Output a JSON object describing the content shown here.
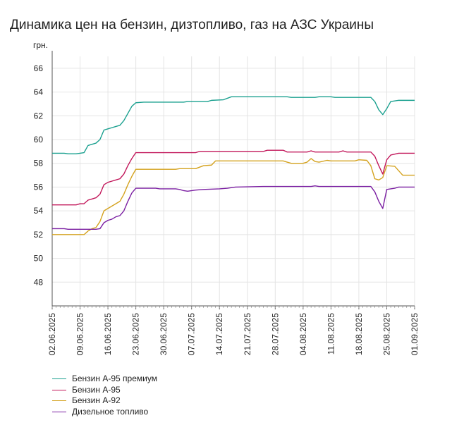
{
  "title": "Динамика цен на бензин, дизтопливо, газ на АЗС Украины",
  "chart_data": {
    "type": "line",
    "title": "Динамика цен на бензин, дизтопливо, газ на АЗС Украины",
    "ylabel": "грн.",
    "xlabel": "",
    "ylim": [
      46,
      67
    ],
    "yticks": [
      48,
      50,
      52,
      54,
      56,
      58,
      60,
      62,
      64,
      66
    ],
    "xlim": [
      "2025-06-02",
      "2025-09-01"
    ],
    "xticks": [
      "02.06.2025",
      "09.06.2025",
      "16.06.2025",
      "23.06.2025",
      "30.06.2025",
      "07.07.2025",
      "14.07.2025",
      "21.07.2025",
      "28.07.2025",
      "04.08.2025",
      "11.08.2025",
      "18.08.2025",
      "25.08.2025",
      "01.09.2025"
    ],
    "grid": true,
    "legend_position": "bottom-left",
    "series": [
      {
        "name": "Бензин А-95 премиум",
        "color": "#1aa08f",
        "points": [
          [
            "2025-06-02",
            58.85
          ],
          [
            "2025-06-05",
            58.85
          ],
          [
            "2025-06-06",
            58.8
          ],
          [
            "2025-06-08",
            58.8
          ],
          [
            "2025-06-09",
            58.85
          ],
          [
            "2025-06-10",
            58.9
          ],
          [
            "2025-06-11",
            59.5
          ],
          [
            "2025-06-13",
            59.7
          ],
          [
            "2025-06-14",
            60.0
          ],
          [
            "2025-06-15",
            60.8
          ],
          [
            "2025-06-16",
            60.9
          ],
          [
            "2025-06-17",
            61.0
          ],
          [
            "2025-06-18",
            61.1
          ],
          [
            "2025-06-19",
            61.2
          ],
          [
            "2025-06-20",
            61.6
          ],
          [
            "2025-06-21",
            62.2
          ],
          [
            "2025-06-22",
            62.8
          ],
          [
            "2025-06-23",
            63.1
          ],
          [
            "2025-06-25",
            63.15
          ],
          [
            "2025-07-05",
            63.15
          ],
          [
            "2025-07-06",
            63.2
          ],
          [
            "2025-07-11",
            63.2
          ],
          [
            "2025-07-12",
            63.3
          ],
          [
            "2025-07-15",
            63.35
          ],
          [
            "2025-07-17",
            63.6
          ],
          [
            "2025-07-31",
            63.6
          ],
          [
            "2025-08-01",
            63.55
          ],
          [
            "2025-08-07",
            63.55
          ],
          [
            "2025-08-08",
            63.6
          ],
          [
            "2025-08-11",
            63.6
          ],
          [
            "2025-08-12",
            63.55
          ],
          [
            "2025-08-21",
            63.55
          ],
          [
            "2025-08-22",
            63.2
          ],
          [
            "2025-08-23",
            62.5
          ],
          [
            "2025-08-24",
            62.1
          ],
          [
            "2025-08-25",
            62.6
          ],
          [
            "2025-08-26",
            63.2
          ],
          [
            "2025-08-28",
            63.3
          ],
          [
            "2025-09-01",
            63.3
          ]
        ]
      },
      {
        "name": "Бензин А-95",
        "color": "#c2185b",
        "points": [
          [
            "2025-06-02",
            54.5
          ],
          [
            "2025-06-08",
            54.5
          ],
          [
            "2025-06-09",
            54.6
          ],
          [
            "2025-06-10",
            54.6
          ],
          [
            "2025-06-11",
            54.9
          ],
          [
            "2025-06-12",
            55.0
          ],
          [
            "2025-06-13",
            55.1
          ],
          [
            "2025-06-14",
            55.4
          ],
          [
            "2025-06-15",
            56.2
          ],
          [
            "2025-06-16",
            56.4
          ],
          [
            "2025-06-17",
            56.5
          ],
          [
            "2025-06-18",
            56.6
          ],
          [
            "2025-06-19",
            56.7
          ],
          [
            "2025-06-20",
            57.1
          ],
          [
            "2025-06-21",
            57.8
          ],
          [
            "2025-06-22",
            58.4
          ],
          [
            "2025-06-23",
            58.9
          ],
          [
            "2025-07-08",
            58.9
          ],
          [
            "2025-07-09",
            59.0
          ],
          [
            "2025-07-25",
            59.0
          ],
          [
            "2025-07-26",
            59.1
          ],
          [
            "2025-07-30",
            59.1
          ],
          [
            "2025-07-31",
            58.95
          ],
          [
            "2025-08-05",
            58.95
          ],
          [
            "2025-08-06",
            59.05
          ],
          [
            "2025-08-07",
            58.95
          ],
          [
            "2025-08-13",
            58.95
          ],
          [
            "2025-08-14",
            59.05
          ],
          [
            "2025-08-15",
            58.95
          ],
          [
            "2025-08-21",
            58.95
          ],
          [
            "2025-08-22",
            58.6
          ],
          [
            "2025-08-23",
            57.8
          ],
          [
            "2025-08-24",
            57.1
          ],
          [
            "2025-08-25",
            58.3
          ],
          [
            "2025-08-26",
            58.7
          ],
          [
            "2025-08-28",
            58.85
          ],
          [
            "2025-09-01",
            58.85
          ]
        ]
      },
      {
        "name": "Бензин А-92",
        "color": "#d4a21e",
        "points": [
          [
            "2025-06-02",
            52.0
          ],
          [
            "2025-06-10",
            52.0
          ],
          [
            "2025-06-11",
            52.3
          ],
          [
            "2025-06-12",
            52.5
          ],
          [
            "2025-06-13",
            52.6
          ],
          [
            "2025-06-14",
            53.1
          ],
          [
            "2025-06-15",
            54.0
          ],
          [
            "2025-06-16",
            54.2
          ],
          [
            "2025-06-17",
            54.4
          ],
          [
            "2025-06-18",
            54.6
          ],
          [
            "2025-06-19",
            54.8
          ],
          [
            "2025-06-20",
            55.4
          ],
          [
            "2025-06-21",
            56.2
          ],
          [
            "2025-06-22",
            56.9
          ],
          [
            "2025-06-23",
            57.5
          ],
          [
            "2025-07-03",
            57.5
          ],
          [
            "2025-07-04",
            57.55
          ],
          [
            "2025-07-08",
            57.55
          ],
          [
            "2025-07-10",
            57.8
          ],
          [
            "2025-07-12",
            57.85
          ],
          [
            "2025-07-13",
            58.2
          ],
          [
            "2025-07-30",
            58.2
          ],
          [
            "2025-07-31",
            58.1
          ],
          [
            "2025-08-01",
            58.0
          ],
          [
            "2025-08-04",
            58.0
          ],
          [
            "2025-08-05",
            58.1
          ],
          [
            "2025-08-06",
            58.4
          ],
          [
            "2025-08-07",
            58.15
          ],
          [
            "2025-08-08",
            58.1
          ],
          [
            "2025-08-10",
            58.25
          ],
          [
            "2025-08-11",
            58.2
          ],
          [
            "2025-08-17",
            58.2
          ],
          [
            "2025-08-18",
            58.3
          ],
          [
            "2025-08-20",
            58.25
          ],
          [
            "2025-08-21",
            57.8
          ],
          [
            "2025-08-22",
            56.7
          ],
          [
            "2025-08-23",
            56.6
          ],
          [
            "2025-08-24",
            56.8
          ],
          [
            "2025-08-25",
            57.8
          ],
          [
            "2025-08-27",
            57.75
          ],
          [
            "2025-08-29",
            57.0
          ],
          [
            "2025-09-01",
            57.0
          ]
        ]
      },
      {
        "name": "Дизельное топливо",
        "color": "#7b1fa2",
        "points": [
          [
            "2025-06-02",
            52.5
          ],
          [
            "2025-06-05",
            52.5
          ],
          [
            "2025-06-06",
            52.45
          ],
          [
            "2025-06-13",
            52.45
          ],
          [
            "2025-06-14",
            52.5
          ],
          [
            "2025-06-15",
            53.0
          ],
          [
            "2025-06-16",
            53.2
          ],
          [
            "2025-06-17",
            53.3
          ],
          [
            "2025-06-18",
            53.5
          ],
          [
            "2025-06-19",
            53.6
          ],
          [
            "2025-06-20",
            54.0
          ],
          [
            "2025-06-21",
            54.8
          ],
          [
            "2025-06-22",
            55.5
          ],
          [
            "2025-06-23",
            55.9
          ],
          [
            "2025-06-28",
            55.9
          ],
          [
            "2025-06-29",
            55.85
          ],
          [
            "2025-07-03",
            55.85
          ],
          [
            "2025-07-04",
            55.8
          ],
          [
            "2025-07-05",
            55.7
          ],
          [
            "2025-07-06",
            55.65
          ],
          [
            "2025-07-08",
            55.75
          ],
          [
            "2025-07-10",
            55.8
          ],
          [
            "2025-07-14",
            55.85
          ],
          [
            "2025-07-16",
            55.9
          ],
          [
            "2025-07-18",
            56.0
          ],
          [
            "2025-07-25",
            56.05
          ],
          [
            "2025-08-06",
            56.05
          ],
          [
            "2025-08-07",
            56.1
          ],
          [
            "2025-08-08",
            56.05
          ],
          [
            "2025-08-21",
            56.05
          ],
          [
            "2025-08-22",
            55.6
          ],
          [
            "2025-08-23",
            54.8
          ],
          [
            "2025-08-24",
            54.2
          ],
          [
            "2025-08-25",
            55.8
          ],
          [
            "2025-08-27",
            55.9
          ],
          [
            "2025-08-28",
            56.0
          ],
          [
            "2025-09-01",
            56.0
          ]
        ]
      }
    ]
  }
}
